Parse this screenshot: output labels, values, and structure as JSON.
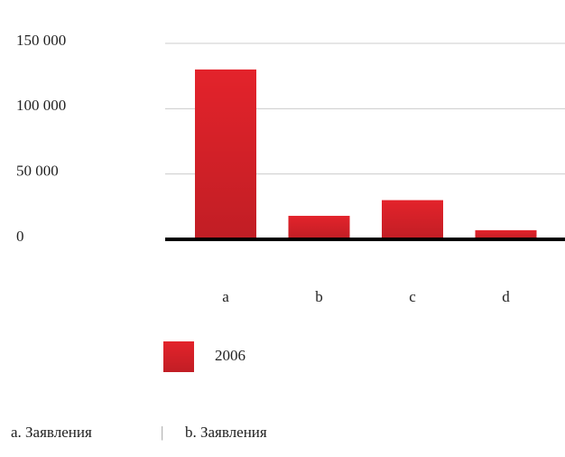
{
  "chart_data": {
    "type": "bar",
    "categories": [
      "a",
      "b",
      "c",
      "d"
    ],
    "series": [
      {
        "name": "2006",
        "color": "#e3232b",
        "values": [
          130000,
          18000,
          30000,
          7000
        ]
      }
    ],
    "ylim": [
      0,
      150000
    ],
    "yticks": [
      0,
      {
        "value": 50000,
        "label": "50 000"
      },
      {
        "value": 100000,
        "label": "100 000"
      },
      {
        "value": 150000,
        "label": "150 000"
      }
    ],
    "grid": true,
    "annotations": [
      "a. Заявления",
      "b. Заявления"
    ]
  }
}
